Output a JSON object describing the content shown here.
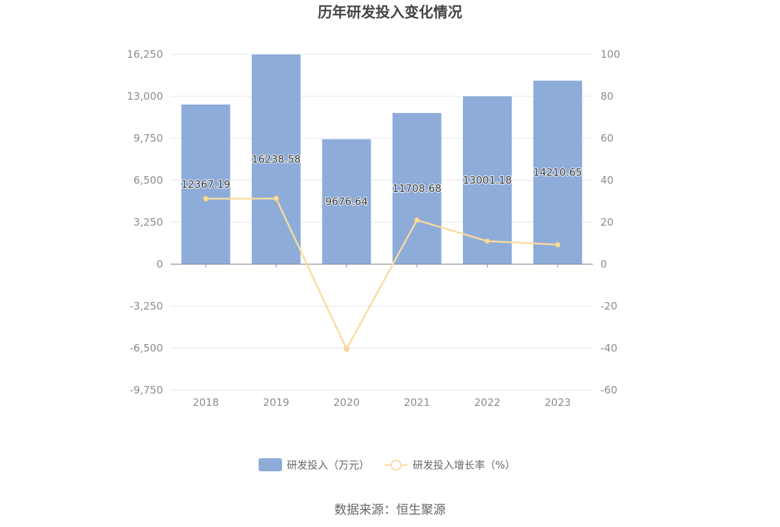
{
  "chart_data": {
    "type": "bar",
    "title": "历年研发投入变化情况",
    "categories": [
      "2018",
      "2019",
      "2020",
      "2021",
      "2022",
      "2023"
    ],
    "series": [
      {
        "name": "研发投入（万元）",
        "type": "bar",
        "axis": "left",
        "values": [
          12367.19,
          16238.58,
          9676.64,
          11708.68,
          13001.18,
          14210.65
        ],
        "labels": [
          "12367.19",
          "16238.58",
          "9676.64",
          "11708.68",
          "13001.18",
          "14210.65"
        ],
        "color": "#8eacd9"
      },
      {
        "name": "研发投入增长率（%）",
        "type": "line",
        "axis": "right",
        "values": [
          31.2,
          31.3,
          -40.4,
          21.0,
          11.0,
          9.3
        ],
        "color": "#f9dba0"
      }
    ],
    "left_axis": {
      "ylim": [
        -9750,
        16250
      ],
      "ticks": [
        16250,
        13000,
        9750,
        6500,
        3250,
        0,
        -3250,
        -6500,
        -9750
      ],
      "tick_labels": [
        "16,250",
        "13,000",
        "9,750",
        "6,500",
        "3,250",
        "0",
        "-3,250",
        "-6,500",
        "-9,750"
      ]
    },
    "right_axis": {
      "ylim": [
        -60,
        100
      ],
      "ticks": [
        100,
        80,
        60,
        40,
        20,
        0,
        -20,
        -40,
        -60
      ],
      "tick_labels": [
        "100",
        "80",
        "60",
        "40",
        "20",
        "0",
        "-20",
        "-40",
        "-60"
      ]
    },
    "grid": true,
    "legend_position": "bottom-center"
  },
  "source_text": "数据来源：恒生聚源",
  "colors": {
    "bar": "#8eacd9",
    "line": "#f9dba0",
    "grid": "#e3e6f0",
    "axis": "#8a8fa3"
  }
}
